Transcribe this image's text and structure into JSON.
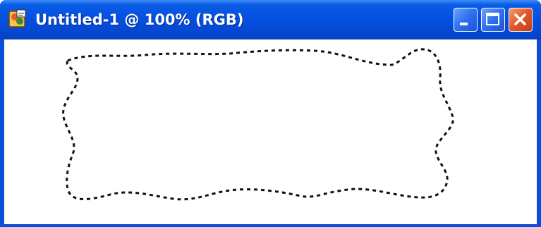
{
  "window": {
    "title": "Untitled-1 @ 100% (RGB)",
    "icon": "photoshop-document-icon"
  },
  "controls": {
    "minimize": "minimize-icon",
    "maximize": "maximize-icon",
    "close": "close-icon"
  },
  "canvas": {
    "selection": "marquee-selection"
  },
  "colors": {
    "titlebar": "#0550e0",
    "close_button": "#e0562a",
    "canvas_background": "#ffffff",
    "selection_dash": "#111111"
  }
}
